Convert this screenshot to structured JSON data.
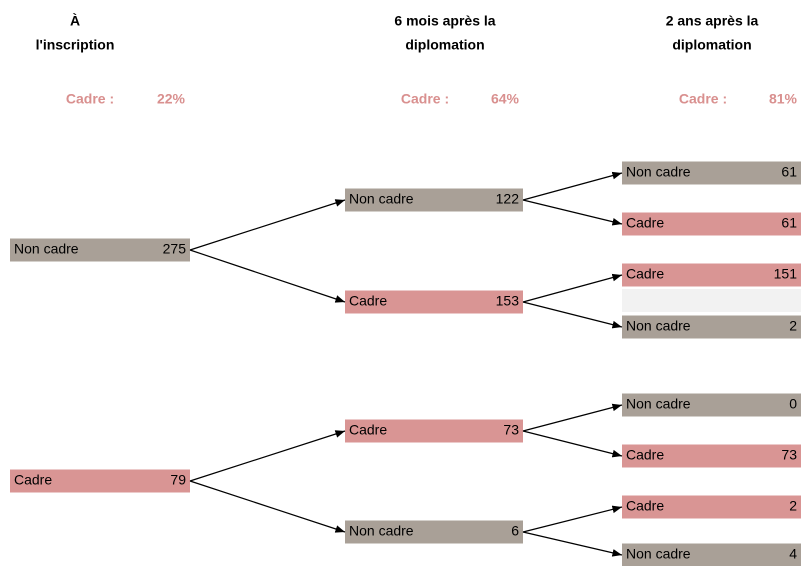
{
  "columns": [
    {
      "title": [
        "À",
        "l'inscription"
      ],
      "rate_label": "Cadre :",
      "rate": "22%"
    },
    {
      "title": [
        "6 mois après la",
        "diplomation"
      ],
      "rate_label": "Cadre :",
      "rate": "64%"
    },
    {
      "title": [
        "2 ans après la",
        "diplomation"
      ],
      "rate_label": "Cadre :",
      "rate": "81%"
    }
  ],
  "tree": [
    {
      "label": "Non cadre",
      "count": "275",
      "children": [
        {
          "label": "Non cadre",
          "count": "122",
          "children": [
            {
              "label": "Non cadre",
              "count": "61"
            },
            {
              "label": "Cadre",
              "count": "61"
            }
          ]
        },
        {
          "label": "Cadre",
          "count": "153",
          "children": [
            {
              "label": "Cadre",
              "count": "151"
            },
            {
              "label": "Non cadre",
              "count": "2"
            }
          ]
        }
      ]
    },
    {
      "label": "Cadre",
      "count": "79",
      "children": [
        {
          "label": "Cadre",
          "count": "73",
          "children": [
            {
              "label": "Non cadre",
              "count": "0"
            },
            {
              "label": "Cadre",
              "count": "73"
            }
          ]
        },
        {
          "label": "Non cadre",
          "count": "6",
          "children": [
            {
              "label": "Cadre",
              "count": "2"
            },
            {
              "label": "Non cadre",
              "count": "4"
            }
          ]
        }
      ]
    }
  ]
}
